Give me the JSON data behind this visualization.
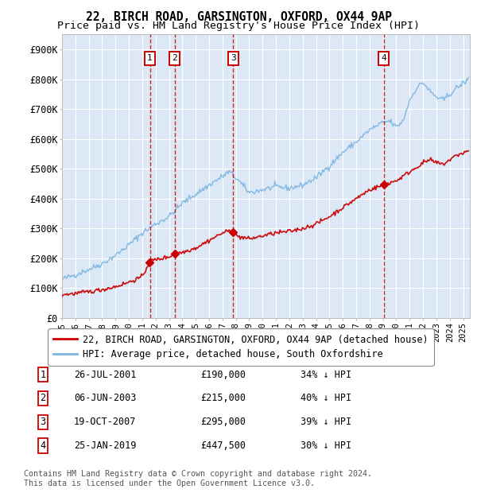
{
  "title": "22, BIRCH ROAD, GARSINGTON, OXFORD, OX44 9AP",
  "subtitle": "Price paid vs. HM Land Registry's House Price Index (HPI)",
  "ylabel_ticks": [
    "£0",
    "£100K",
    "£200K",
    "£300K",
    "£400K",
    "£500K",
    "£600K",
    "£700K",
    "£800K",
    "£900K"
  ],
  "ytick_values": [
    0,
    100000,
    200000,
    300000,
    400000,
    500000,
    600000,
    700000,
    800000,
    900000
  ],
  "ylim": [
    0,
    950000
  ],
  "xlim_start": 1995.0,
  "xlim_end": 2025.5,
  "background_color": "#ffffff",
  "plot_bg_color": "#dce8f5",
  "grid_color": "#ffffff",
  "hpi_color": "#7ab3e0",
  "price_color": "#cc0000",
  "dashed_line_color": "#cc0000",
  "legend_label_price": "22, BIRCH ROAD, GARSINGTON, OXFORD, OX44 9AP (detached house)",
  "legend_label_hpi": "HPI: Average price, detached house, South Oxfordshire",
  "transactions": [
    {
      "label": "1",
      "date": 2001.57,
      "price": 190000,
      "date_str": "26-JUL-2001",
      "price_str": "£190,000",
      "pct": "34% ↓ HPI"
    },
    {
      "label": "2",
      "date": 2003.43,
      "price": 215000,
      "date_str": "06-JUN-2003",
      "price_str": "£215,000",
      "pct": "40% ↓ HPI"
    },
    {
      "label": "3",
      "date": 2007.8,
      "price": 295000,
      "date_str": "19-OCT-2007",
      "price_str": "£295,000",
      "pct": "39% ↓ HPI"
    },
    {
      "label": "4",
      "date": 2019.07,
      "price": 447500,
      "date_str": "25-JAN-2019",
      "price_str": "£447,500",
      "pct": "30% ↓ HPI"
    }
  ],
  "footer": "Contains HM Land Registry data © Crown copyright and database right 2024.\nThis data is licensed under the Open Government Licence v3.0.",
  "title_fontsize": 10.5,
  "subtitle_fontsize": 9.5,
  "tick_fontsize": 8.5,
  "legend_fontsize": 8.5,
  "table_fontsize": 8.5,
  "footer_fontsize": 7.2
}
